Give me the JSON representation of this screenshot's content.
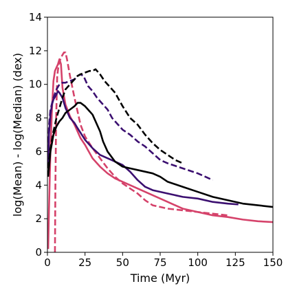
{
  "chart_data": {
    "type": "line",
    "title": "",
    "xlabel": "Time (Myr)",
    "ylabel": "log(Mean) - log(Median) (dex)",
    "xlim": [
      0,
      150
    ],
    "ylim": [
      0,
      14
    ],
    "xticks": [
      0,
      25,
      50,
      75,
      100,
      125,
      150
    ],
    "yticks": [
      0,
      2,
      4,
      6,
      8,
      10,
      12,
      14
    ],
    "grid": false,
    "legend": "none",
    "series": [
      {
        "color": "#d5426a",
        "style": "solid",
        "points": [
          [
            0.5,
            0.2
          ],
          [
            1,
            2.5
          ],
          [
            2,
            6
          ],
          [
            3,
            8.5
          ],
          [
            4,
            10.2
          ],
          [
            5,
            10.8
          ],
          [
            6,
            11.0
          ],
          [
            7,
            11.2
          ],
          [
            8,
            11.5
          ],
          [
            9,
            11.2
          ],
          [
            10,
            9.8
          ],
          [
            12,
            8.8
          ],
          [
            15,
            8.1
          ],
          [
            18,
            7.6
          ],
          [
            20,
            7.2
          ],
          [
            22,
            6.8
          ],
          [
            25,
            6.4
          ],
          [
            30,
            5.6
          ],
          [
            35,
            5.1
          ],
          [
            40,
            4.7
          ],
          [
            45,
            4.4
          ],
          [
            50,
            4.2
          ],
          [
            60,
            3.8
          ],
          [
            70,
            3.4
          ],
          [
            80,
            3.0
          ],
          [
            90,
            2.6
          ],
          [
            100,
            2.4
          ],
          [
            110,
            2.2
          ],
          [
            120,
            2.1
          ],
          [
            130,
            1.95
          ],
          [
            140,
            1.85
          ],
          [
            150,
            1.8
          ]
        ]
      },
      {
        "color": "#d5426a",
        "style": "dashed",
        "points": [
          [
            5,
            0
          ],
          [
            5.3,
            4
          ],
          [
            5.8,
            8
          ],
          [
            6.5,
            10.5
          ],
          [
            7.5,
            11.2
          ],
          [
            9,
            11.6
          ],
          [
            11,
            11.9
          ],
          [
            12,
            11.9
          ],
          [
            13,
            11.5
          ],
          [
            15,
            10.5
          ],
          [
            18,
            9.2
          ],
          [
            20,
            8.4
          ],
          [
            22,
            7.6
          ],
          [
            25,
            6.9
          ],
          [
            30,
            6.2
          ],
          [
            35,
            5.6
          ],
          [
            40,
            5.0
          ],
          [
            45,
            4.5
          ],
          [
            50,
            4.1
          ],
          [
            55,
            3.8
          ],
          [
            60,
            3.5
          ],
          [
            65,
            3.1
          ],
          [
            70,
            2.8
          ],
          [
            75,
            2.7
          ],
          [
            80,
            2.6
          ],
          [
            90,
            2.5
          ],
          [
            100,
            2.4
          ],
          [
            110,
            2.3
          ],
          [
            120,
            2.2
          ]
        ]
      },
      {
        "color": "#3b0f70",
        "style": "solid",
        "points": [
          [
            0.5,
            5
          ],
          [
            1,
            7
          ],
          [
            2,
            8.2
          ],
          [
            3,
            8.8
          ],
          [
            4,
            9.1
          ],
          [
            6,
            9.4
          ],
          [
            7,
            9.6
          ],
          [
            8,
            9.5
          ],
          [
            10,
            9.2
          ],
          [
            12,
            8.6
          ],
          [
            15,
            8.0
          ],
          [
            18,
            7.7
          ],
          [
            20,
            7.4
          ],
          [
            25,
            6.7
          ],
          [
            30,
            6.2
          ],
          [
            35,
            5.8
          ],
          [
            40,
            5.6
          ],
          [
            45,
            5.4
          ],
          [
            50,
            5.2
          ],
          [
            55,
            4.8
          ],
          [
            60,
            4.3
          ],
          [
            65,
            3.9
          ],
          [
            70,
            3.7
          ],
          [
            80,
            3.5
          ],
          [
            90,
            3.3
          ],
          [
            100,
            3.2
          ],
          [
            110,
            3.0
          ],
          [
            120,
            2.9
          ],
          [
            127,
            2.85
          ]
        ]
      },
      {
        "color": "#3b0f70",
        "style": "dashed",
        "points": [
          [
            0.5,
            6
          ],
          [
            1,
            7.5
          ],
          [
            2,
            8.5
          ],
          [
            4,
            9.2
          ],
          [
            6,
            9.7
          ],
          [
            8,
            10.0
          ],
          [
            10,
            10.1
          ],
          [
            12,
            10.1
          ],
          [
            15,
            10.2
          ],
          [
            18,
            10.3
          ],
          [
            20,
            10.5
          ],
          [
            22,
            10.6
          ],
          [
            24,
            10.5
          ],
          [
            27,
            9.9
          ],
          [
            30,
            9.6
          ],
          [
            33,
            9.2
          ],
          [
            36,
            8.9
          ],
          [
            40,
            8.5
          ],
          [
            43,
            8.0
          ],
          [
            47,
            7.6
          ],
          [
            50,
            7.3
          ],
          [
            55,
            7.0
          ],
          [
            60,
            6.6
          ],
          [
            65,
            6.3
          ],
          [
            70,
            5.9
          ],
          [
            75,
            5.5
          ],
          [
            80,
            5.3
          ],
          [
            90,
            5.0
          ],
          [
            100,
            4.7
          ],
          [
            110,
            4.3
          ]
        ]
      },
      {
        "color": "#000000",
        "style": "solid",
        "points": [
          [
            0.5,
            4.5
          ],
          [
            2,
            6
          ],
          [
            4,
            7
          ],
          [
            6,
            7.5
          ],
          [
            8,
            7.8
          ],
          [
            10,
            8.0
          ],
          [
            12,
            8.3
          ],
          [
            15,
            8.5
          ],
          [
            18,
            8.7
          ],
          [
            20,
            8.9
          ],
          [
            22,
            8.9
          ],
          [
            25,
            8.7
          ],
          [
            27,
            8.5
          ],
          [
            30,
            8.2
          ],
          [
            32,
            7.8
          ],
          [
            35,
            7.2
          ],
          [
            37,
            6.6
          ],
          [
            40,
            6.0
          ],
          [
            45,
            5.4
          ],
          [
            50,
            5.1
          ],
          [
            55,
            5.0
          ],
          [
            60,
            4.9
          ],
          [
            70,
            4.7
          ],
          [
            75,
            4.5
          ],
          [
            80,
            4.2
          ],
          [
            90,
            3.9
          ],
          [
            100,
            3.6
          ],
          [
            110,
            3.3
          ],
          [
            120,
            3.1
          ],
          [
            130,
            2.9
          ],
          [
            140,
            2.8
          ],
          [
            150,
            2.7
          ]
        ]
      },
      {
        "color": "#000000",
        "style": "dashed",
        "points": [
          [
            0.5,
            5
          ],
          [
            2,
            6.2
          ],
          [
            4,
            7.2
          ],
          [
            6,
            8.0
          ],
          [
            8,
            8.6
          ],
          [
            10,
            9.2
          ],
          [
            12,
            9.7
          ],
          [
            15,
            10.0
          ],
          [
            18,
            10.3
          ],
          [
            20,
            10.5
          ],
          [
            22,
            10.6
          ],
          [
            25,
            10.7
          ],
          [
            28,
            10.8
          ],
          [
            30,
            10.8
          ],
          [
            32,
            10.9
          ],
          [
            35,
            10.6
          ],
          [
            38,
            10.2
          ],
          [
            40,
            10.0
          ],
          [
            45,
            9.5
          ],
          [
            50,
            8.7
          ],
          [
            55,
            8.0
          ],
          [
            60,
            7.6
          ],
          [
            65,
            7.0
          ],
          [
            70,
            6.5
          ],
          [
            75,
            6.1
          ],
          [
            80,
            5.8
          ],
          [
            85,
            5.5
          ],
          [
            90,
            5.3
          ]
        ]
      }
    ]
  }
}
